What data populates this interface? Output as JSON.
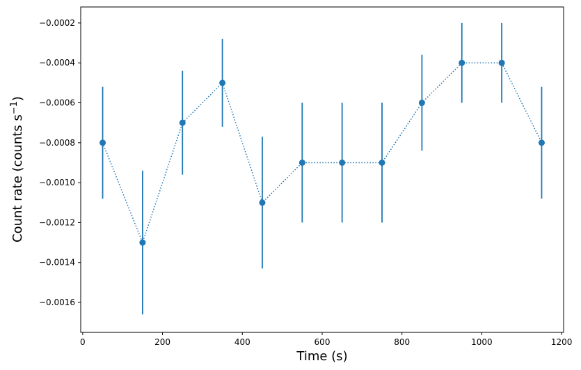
{
  "chart_data": {
    "type": "scatter",
    "title": "",
    "xlabel": "Time (s)",
    "ylabel": "Count rate (counts s",
    "ylabel_superscript": "−1",
    "ylabel_suffix": ")",
    "xlim": [
      -5,
      1205
    ],
    "ylim": [
      -0.00175,
      -0.00012
    ],
    "grid": false,
    "legend": "none",
    "line_style": "dotted",
    "color": "#1f77b4",
    "x_ticks": [
      0,
      200,
      400,
      600,
      800,
      1000,
      1200
    ],
    "x_tick_labels": [
      "0",
      "200",
      "400",
      "600",
      "800",
      "1000",
      "1200"
    ],
    "y_ticks": [
      -0.0016,
      -0.0014,
      -0.0012,
      -0.001,
      -0.0008,
      -0.0006,
      -0.0004,
      -0.0002
    ],
    "y_tick_labels": [
      "−0.0016",
      "−0.0014",
      "−0.0012",
      "−0.0010",
      "−0.0008",
      "−0.0006",
      "−0.0004",
      "−0.0002"
    ],
    "series": [
      {
        "x": [
          50,
          150,
          250,
          350,
          450,
          550,
          650,
          750,
          850,
          950,
          1050,
          1150
        ],
        "y": [
          -0.0008,
          -0.0013,
          -0.0007,
          -0.0005,
          -0.0011,
          -0.0009,
          -0.0009,
          -0.0009,
          -0.0006,
          -0.0004,
          -0.0004,
          -0.0008
        ],
        "yerr": [
          0.00028,
          0.00036,
          0.00026,
          0.00022,
          0.00033,
          0.0003,
          0.0003,
          0.0003,
          0.00024,
          0.0002,
          0.0002,
          0.00028
        ]
      }
    ]
  }
}
